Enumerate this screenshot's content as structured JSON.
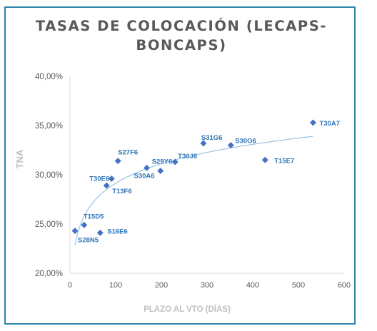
{
  "chart_data": {
    "type": "scatter",
    "title_lines": [
      "TASAS DE COLOCACIÓN (LECAPS-",
      "BONCAPS)"
    ],
    "xlabel": "PLAZO AL VTO (DÍAS)",
    "ylabel": "TNA",
    "xlim": [
      0,
      600
    ],
    "ylim": [
      20,
      40
    ],
    "x_ticks": [
      "0",
      "100",
      "200",
      "300",
      "400",
      "500",
      "600"
    ],
    "y_ticks": [
      "20,00%",
      "25,00%",
      "30,00%",
      "35,00%",
      "40,00%"
    ],
    "grid": false,
    "trendline": "logarithmic",
    "colors": {
      "marker": "#4472c4",
      "label": "#2e75b6",
      "trendline": "#9dc3e6",
      "frame": "#2e86a8"
    },
    "points": [
      {
        "label": "S28N5",
        "x": 11,
        "y": 24.3
      },
      {
        "label": "T15D5",
        "x": 31,
        "y": 24.9
      },
      {
        "label": "S16E6",
        "x": 66,
        "y": 24.1
      },
      {
        "label": "T13F6",
        "x": 80,
        "y": 28.9
      },
      {
        "label": "T30E6",
        "x": 91,
        "y": 29.6
      },
      {
        "label": "S27F6",
        "x": 105,
        "y": 31.4
      },
      {
        "label": "S30A6",
        "x": 168,
        "y": 30.7
      },
      {
        "label": "S29Y6",
        "x": 198,
        "y": 30.4
      },
      {
        "label": "T30J6",
        "x": 230,
        "y": 31.3
      },
      {
        "label": "S31G6",
        "x": 292,
        "y": 33.2
      },
      {
        "label": "S30O6",
        "x": 352,
        "y": 33.0
      },
      {
        "label": "T15E7",
        "x": 427,
        "y": 31.5
      },
      {
        "label": "T30A7",
        "x": 532,
        "y": 35.3
      }
    ]
  }
}
